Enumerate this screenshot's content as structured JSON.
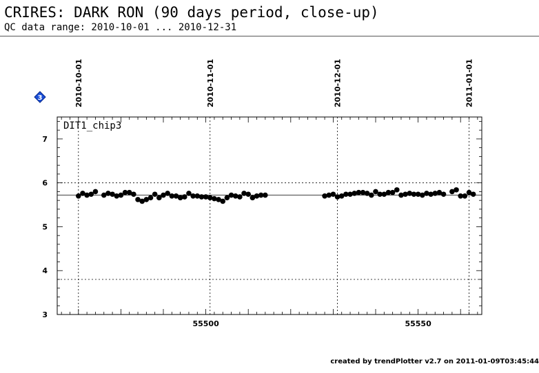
{
  "header": {
    "title": "CRIRES: DARK RON (90 days period, close-up)",
    "subtitle": "QC data range: 2010-10-01 ... 2010-12-31"
  },
  "footer": {
    "credit": "created by trendPlotter v2.7 on 2011-01-09T03:45:44"
  },
  "marker": {
    "icon": "blue-diamond-3-icon",
    "label": "3",
    "color": "#1a4fd8"
  },
  "chart_data": {
    "type": "scatter",
    "panel_label": "DIT1_chip3",
    "xlim": [
      55465,
      55565
    ],
    "ylim": [
      3,
      7.5
    ],
    "xticks": [
      55500,
      55550
    ],
    "yticks": [
      3,
      4,
      5,
      6,
      7
    ],
    "date_markers": [
      {
        "label": "2010-10-01",
        "x": 55470
      },
      {
        "label": "2010-11-01",
        "x": 55501
      },
      {
        "label": "2010-12-01",
        "x": 55531
      },
      {
        "label": "2011-01-01",
        "x": 55562
      }
    ],
    "reference_lines": {
      "mean": 5.72,
      "upper": 6.0,
      "lower": 3.8
    },
    "x": [
      55470,
      55471,
      55472,
      55473,
      55474,
      55476,
      55477,
      55478,
      55479,
      55480,
      55481,
      55482,
      55483,
      55484,
      55485,
      55486,
      55487,
      55488,
      55489,
      55490,
      55491,
      55492,
      55493,
      55494,
      55495,
      55496,
      55497,
      55498,
      55499,
      55500,
      55501,
      55502,
      55503,
      55504,
      55505,
      55506,
      55507,
      55508,
      55509,
      55510,
      55511,
      55512,
      55513,
      55514,
      55528,
      55529,
      55530,
      55531,
      55532,
      55533,
      55534,
      55535,
      55536,
      55537,
      55538,
      55539,
      55540,
      55541,
      55542,
      55543,
      55544,
      55545,
      55546,
      55547,
      55548,
      55549,
      55550,
      55551,
      55552,
      55553,
      55554,
      55555,
      55556,
      55558,
      55559,
      55560,
      55561,
      55562,
      55563
    ],
    "y": [
      5.7,
      5.76,
      5.72,
      5.74,
      5.8,
      5.72,
      5.76,
      5.74,
      5.7,
      5.72,
      5.78,
      5.78,
      5.74,
      5.62,
      5.58,
      5.62,
      5.66,
      5.74,
      5.66,
      5.72,
      5.76,
      5.7,
      5.7,
      5.66,
      5.68,
      5.76,
      5.7,
      5.7,
      5.68,
      5.68,
      5.66,
      5.64,
      5.62,
      5.58,
      5.66,
      5.72,
      5.7,
      5.68,
      5.76,
      5.74,
      5.66,
      5.7,
      5.72,
      5.72,
      5.7,
      5.72,
      5.74,
      5.68,
      5.7,
      5.74,
      5.74,
      5.76,
      5.78,
      5.78,
      5.76,
      5.72,
      5.8,
      5.74,
      5.74,
      5.78,
      5.78,
      5.84,
      5.72,
      5.74,
      5.76,
      5.74,
      5.74,
      5.72,
      5.76,
      5.74,
      5.76,
      5.78,
      5.74,
      5.8,
      5.84,
      5.7,
      5.7,
      5.78,
      5.74
    ]
  }
}
